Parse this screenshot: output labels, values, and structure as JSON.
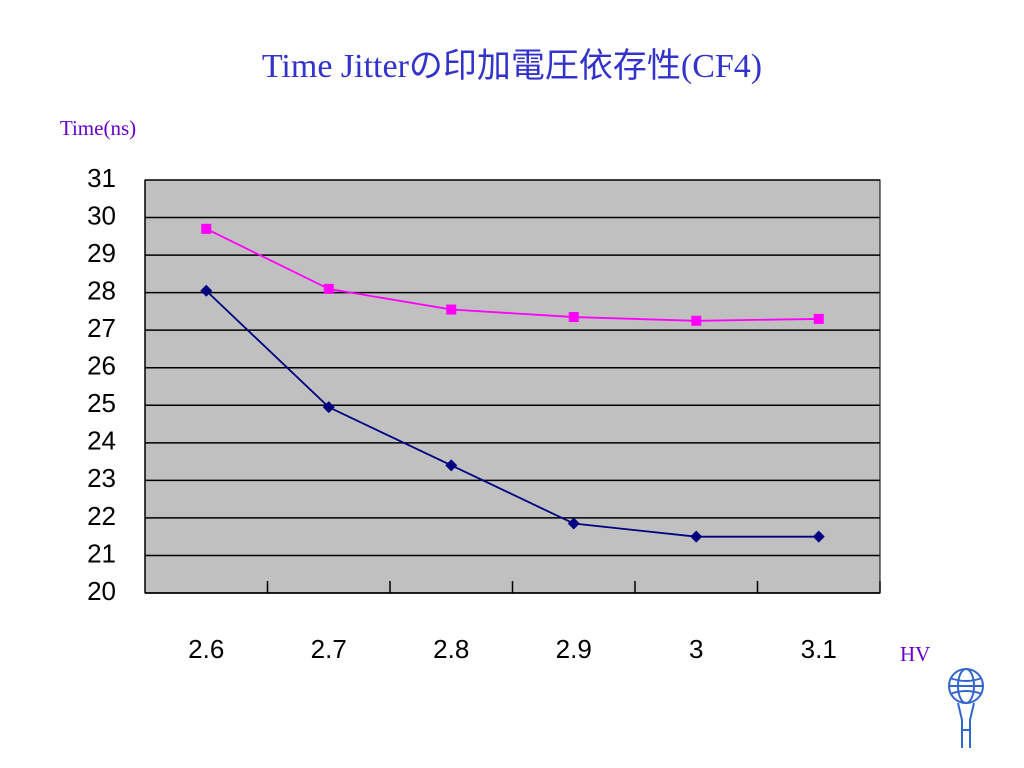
{
  "chart_data": {
    "type": "line",
    "title": "Time Jitterの印加電圧依存性(CF4)",
    "y_label": "Time(ns)",
    "x_label": "HV",
    "categories": [
      "2.6",
      "2.7",
      "2.8",
      "2.9",
      "3",
      "3.1"
    ],
    "series": [
      {
        "color": "#ff00ff",
        "marker": "square",
        "values": [
          29.7,
          28.1,
          27.55,
          27.35,
          27.25,
          27.3
        ]
      },
      {
        "color": "#000080",
        "marker": "diamond",
        "values": [
          28.05,
          24.95,
          23.4,
          21.85,
          21.5,
          21.5
        ]
      }
    ],
    "ylim": [
      20,
      31
    ],
    "yticks": [
      20,
      21,
      22,
      23,
      24,
      25,
      26,
      27,
      28,
      29,
      30,
      31
    ],
    "grid": true,
    "plot_background": "#c0c0c0"
  }
}
